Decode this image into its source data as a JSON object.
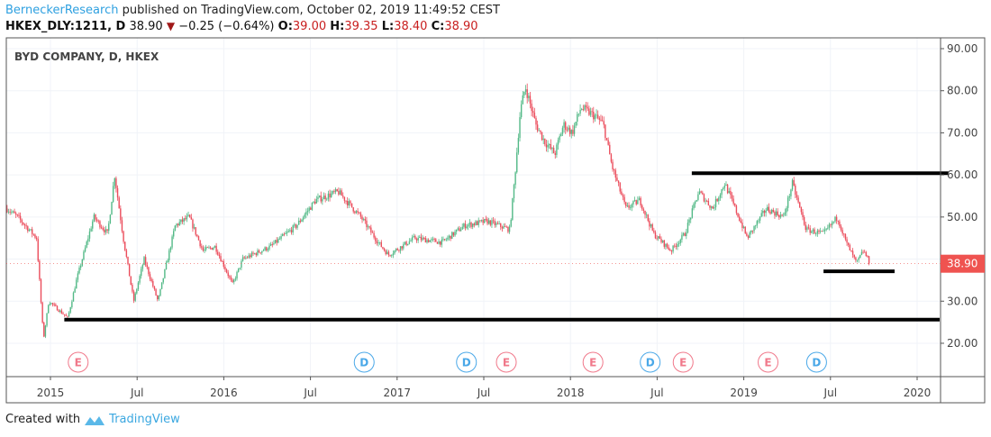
{
  "header": {
    "author": "BerneckerResearch",
    "published": "published on TradingView.com, October 02, 2019 11:49:52 CEST",
    "symbol": "HKEX_DLY:1211, D",
    "last": "38.90",
    "change": "−0.25 (−0.64%)",
    "o_label": "O:",
    "o": "39.00",
    "h_label": "H:",
    "h": "39.35",
    "l_label": "L:",
    "l": "38.40",
    "c_label": "C:",
    "c": "38.90"
  },
  "footer": {
    "created_with": "Created with",
    "brand": "TradingView"
  },
  "colors": {
    "up": "#53b987",
    "down": "#eb4d5c",
    "price_tag": "#ef5350",
    "event_e": "#f0788a",
    "event_d": "#4aa8e8",
    "drawing": "#000000"
  },
  "chart_data": {
    "type": "candlestick",
    "title": "BYD COMPANY, D, HKEX",
    "ylim": [
      10.5,
      92
    ],
    "xlim": [
      2014.745,
      2020.13
    ],
    "y_ticks": [
      "90.00",
      "80.00",
      "70.00",
      "60.00",
      "50.00",
      "30.00",
      "20.00"
    ],
    "y_tick_values": [
      90,
      80,
      70,
      60,
      50,
      30,
      20
    ],
    "x_ticks": [
      {
        "label": "2015",
        "t": 2015.0
      },
      {
        "label": "Jul",
        "t": 2015.5
      },
      {
        "label": "2016",
        "t": 2016.0
      },
      {
        "label": "Jul",
        "t": 2016.5
      },
      {
        "label": "2017",
        "t": 2017.0
      },
      {
        "label": "Jul",
        "t": 2017.5
      },
      {
        "label": "2018",
        "t": 2018.0
      },
      {
        "label": "Jul",
        "t": 2018.5
      },
      {
        "label": "2019",
        "t": 2019.0
      },
      {
        "label": "Jul",
        "t": 2019.5
      },
      {
        "label": "2020",
        "t": 2020.0
      }
    ],
    "last_price_label": "38.90",
    "last_price": 38.9,
    "price_path": [
      [
        2014.75,
        52
      ],
      [
        2014.81,
        50
      ],
      [
        2014.92,
        45
      ],
      [
        2014.96,
        21
      ],
      [
        2014.99,
        30
      ],
      [
        2015.1,
        26
      ],
      [
        2015.15,
        35
      ],
      [
        2015.25,
        50
      ],
      [
        2015.33,
        46
      ],
      [
        2015.37,
        60
      ],
      [
        2015.42,
        45
      ],
      [
        2015.48,
        30
      ],
      [
        2015.54,
        40
      ],
      [
        2015.62,
        30
      ],
      [
        2015.72,
        48
      ],
      [
        2015.8,
        50
      ],
      [
        2015.88,
        42
      ],
      [
        2015.95,
        43
      ],
      [
        2016.05,
        34
      ],
      [
        2016.11,
        40
      ],
      [
        2016.27,
        43
      ],
      [
        2016.42,
        48
      ],
      [
        2016.53,
        54
      ],
      [
        2016.66,
        56
      ],
      [
        2016.79,
        50
      ],
      [
        2016.89,
        44
      ],
      [
        2016.95,
        41
      ],
      [
        2017.1,
        45
      ],
      [
        2017.26,
        44
      ],
      [
        2017.39,
        48
      ],
      [
        2017.52,
        49
      ],
      [
        2017.65,
        47
      ],
      [
        2017.68,
        60
      ],
      [
        2017.71,
        75
      ],
      [
        2017.74,
        81
      ],
      [
        2017.8,
        72
      ],
      [
        2017.85,
        68
      ],
      [
        2017.91,
        65
      ],
      [
        2017.96,
        72
      ],
      [
        2018.01,
        70
      ],
      [
        2018.06,
        76
      ],
      [
        2018.14,
        74
      ],
      [
        2018.19,
        72
      ],
      [
        2018.24,
        62
      ],
      [
        2018.32,
        52
      ],
      [
        2018.4,
        54
      ],
      [
        2018.48,
        46
      ],
      [
        2018.58,
        42
      ],
      [
        2018.66,
        46
      ],
      [
        2018.74,
        56
      ],
      [
        2018.82,
        52
      ],
      [
        2018.89,
        58
      ],
      [
        2018.94,
        53
      ],
      [
        2019.02,
        45
      ],
      [
        2019.13,
        52
      ],
      [
        2019.23,
        50
      ],
      [
        2019.28,
        58
      ],
      [
        2019.36,
        47
      ],
      [
        2019.46,
        46
      ],
      [
        2019.54,
        50
      ],
      [
        2019.59,
        44
      ],
      [
        2019.65,
        39
      ],
      [
        2019.69,
        42
      ],
      [
        2019.73,
        38.9
      ]
    ],
    "horizontal_lines": [
      {
        "price": 60.4,
        "from": 2018.7,
        "to": 2020.18
      },
      {
        "price": 37.1,
        "from": 2019.46,
        "to": 2019.87
      },
      {
        "price": 25.6,
        "from": 2015.08,
        "to": 2020.13
      }
    ],
    "events": [
      {
        "type": "E",
        "t": 2015.16
      },
      {
        "type": "D",
        "t": 2016.81
      },
      {
        "type": "D",
        "t": 2017.4
      },
      {
        "type": "E",
        "t": 2017.63
      },
      {
        "type": "E",
        "t": 2018.13
      },
      {
        "type": "D",
        "t": 2018.46
      },
      {
        "type": "E",
        "t": 2018.65
      },
      {
        "type": "E",
        "t": 2019.14
      },
      {
        "type": "D",
        "t": 2019.42
      }
    ]
  }
}
